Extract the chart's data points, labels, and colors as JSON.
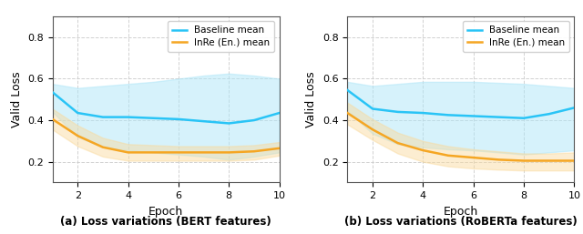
{
  "epochs": [
    1,
    2,
    3,
    4,
    5,
    6,
    7,
    8,
    9,
    10
  ],
  "bert_baseline_mean": [
    0.535,
    0.435,
    0.415,
    0.415,
    0.41,
    0.405,
    0.395,
    0.385,
    0.4,
    0.435
  ],
  "bert_baseline_upper": [
    0.575,
    0.555,
    0.565,
    0.575,
    0.585,
    0.6,
    0.615,
    0.625,
    0.615,
    0.6
  ],
  "bert_baseline_lower": [
    0.44,
    0.32,
    0.27,
    0.255,
    0.245,
    0.235,
    0.225,
    0.21,
    0.225,
    0.245
  ],
  "bert_inre_mean": [
    0.405,
    0.325,
    0.27,
    0.245,
    0.245,
    0.245,
    0.245,
    0.245,
    0.25,
    0.265
  ],
  "bert_inre_upper": [
    0.455,
    0.375,
    0.315,
    0.285,
    0.28,
    0.275,
    0.275,
    0.275,
    0.28,
    0.295
  ],
  "bert_inre_lower": [
    0.355,
    0.275,
    0.225,
    0.205,
    0.205,
    0.205,
    0.205,
    0.205,
    0.21,
    0.23
  ],
  "roberta_baseline_mean": [
    0.545,
    0.455,
    0.44,
    0.435,
    0.425,
    0.42,
    0.415,
    0.41,
    0.43,
    0.46
  ],
  "roberta_baseline_upper": [
    0.585,
    0.565,
    0.575,
    0.585,
    0.585,
    0.585,
    0.58,
    0.575,
    0.565,
    0.555
  ],
  "roberta_baseline_lower": [
    0.445,
    0.335,
    0.285,
    0.27,
    0.26,
    0.255,
    0.245,
    0.235,
    0.245,
    0.255
  ],
  "roberta_inre_mean": [
    0.435,
    0.355,
    0.29,
    0.255,
    0.23,
    0.22,
    0.21,
    0.205,
    0.205,
    0.205
  ],
  "roberta_inre_upper": [
    0.485,
    0.405,
    0.34,
    0.3,
    0.275,
    0.26,
    0.25,
    0.24,
    0.24,
    0.245
  ],
  "roberta_inre_lower": [
    0.38,
    0.305,
    0.24,
    0.2,
    0.178,
    0.168,
    0.162,
    0.158,
    0.158,
    0.158
  ],
  "baseline_color": "#29C4F6",
  "inre_color": "#F5A623",
  "baseline_fill": "#AEE6F8",
  "inre_fill": "#FAD99A",
  "baseline_fill_alpha": 0.5,
  "inre_fill_alpha": 0.45,
  "ylabel": "Valid Loss",
  "xlabel": "Epoch",
  "ylim": [
    0.1,
    0.9
  ],
  "yticks": [
    0.2,
    0.4,
    0.6,
    0.8
  ],
  "xticks": [
    2,
    4,
    6,
    8,
    10
  ],
  "title_a": "(a) Loss variations (BERT features)",
  "title_b": "(b) Loss variations (RoBERTa features)",
  "legend_baseline": "Baseline mean",
  "legend_inre": "InRe (En.) mean",
  "grid_color": "#cccccc",
  "grid_style": "--",
  "grid_alpha": 0.9,
  "linewidth": 1.8
}
